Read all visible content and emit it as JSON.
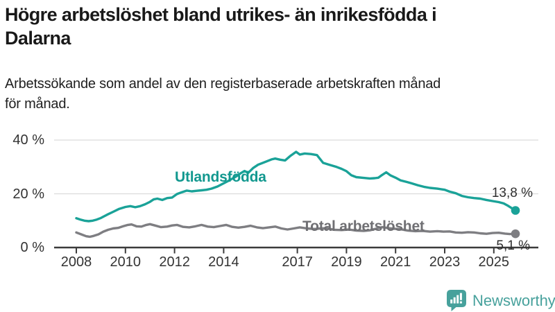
{
  "header": {
    "title": "Högre arbetslöshet bland utrikes- än inrikesfödda i\nDalarna",
    "subtitle": "Arbetssökande som andel av den registerbaserade arbetskraften månad\nför månad."
  },
  "footer": {
    "brand": "Newsworthy",
    "brand_color": "#47a19c",
    "logo_icon": "speech-bubble-bar-chart-exclamation"
  },
  "chart_data": {
    "type": "line",
    "title": "Högre arbetslöshet bland utrikes- än inrikesfödda i Dalarna",
    "subtitle": "Arbetssökande som andel av den registerbaserade arbetskraften månad för månad.",
    "unit": "%",
    "ylim": [
      0,
      40
    ],
    "xlim": [
      2007.1,
      2026.8
    ],
    "grid": "horizontal-only",
    "legend": "inline-labels",
    "yticks": [
      {
        "label": "0 %",
        "value": 0
      },
      {
        "label": "20 %",
        "value": 20
      },
      {
        "label": "40 %",
        "value": 40
      }
    ],
    "xticks": [
      {
        "label": "2008",
        "year": 2008
      },
      {
        "label": "2010",
        "year": 2010
      },
      {
        "label": "2012",
        "year": 2012
      },
      {
        "label": "2014",
        "year": 2014
      },
      {
        "label": "2017",
        "year": 2017
      },
      {
        "label": "2019",
        "year": 2019
      },
      {
        "label": "2021",
        "year": 2021
      },
      {
        "label": "2023",
        "year": 2023
      },
      {
        "label": "2025",
        "year": 2025
      }
    ],
    "series": [
      {
        "name": "Utlandsfödda",
        "color": "#1aa298",
        "name_color": "#12988f",
        "end_label": "13,8 %",
        "end_value": 13.8,
        "points": [
          [
            2008.0,
            10.9
          ],
          [
            2008.17,
            10.4
          ],
          [
            2008.33,
            10.0
          ],
          [
            2008.5,
            9.8
          ],
          [
            2008.67,
            10.0
          ],
          [
            2008.83,
            10.4
          ],
          [
            2009.0,
            11.0
          ],
          [
            2009.25,
            12.2
          ],
          [
            2009.5,
            13.3
          ],
          [
            2009.75,
            14.4
          ],
          [
            2010.0,
            15.1
          ],
          [
            2010.2,
            15.4
          ],
          [
            2010.4,
            15.0
          ],
          [
            2010.6,
            15.4
          ],
          [
            2010.8,
            16.1
          ],
          [
            2011.0,
            17.0
          ],
          [
            2011.15,
            17.9
          ],
          [
            2011.3,
            18.2
          ],
          [
            2011.5,
            17.7
          ],
          [
            2011.7,
            18.4
          ],
          [
            2011.9,
            18.6
          ],
          [
            2012.1,
            19.9
          ],
          [
            2012.3,
            20.6
          ],
          [
            2012.5,
            21.2
          ],
          [
            2012.7,
            20.9
          ],
          [
            2012.9,
            21.1
          ],
          [
            2013.1,
            21.3
          ],
          [
            2013.3,
            21.5
          ],
          [
            2013.5,
            21.9
          ],
          [
            2013.75,
            22.7
          ],
          [
            2014.0,
            23.9
          ],
          [
            2014.25,
            25.1
          ],
          [
            2014.5,
            26.4
          ],
          [
            2014.7,
            27.7
          ],
          [
            2014.85,
            28.5
          ],
          [
            2015.0,
            27.8
          ],
          [
            2015.2,
            29.6
          ],
          [
            2015.4,
            30.8
          ],
          [
            2015.7,
            31.9
          ],
          [
            2015.95,
            32.8
          ],
          [
            2016.1,
            33.1
          ],
          [
            2016.3,
            32.7
          ],
          [
            2016.5,
            32.4
          ],
          [
            2016.7,
            34.0
          ],
          [
            2016.95,
            35.6
          ],
          [
            2017.1,
            34.6
          ],
          [
            2017.3,
            35.0
          ],
          [
            2017.55,
            34.8
          ],
          [
            2017.8,
            34.4
          ],
          [
            2018.05,
            31.5
          ],
          [
            2018.3,
            30.8
          ],
          [
            2018.6,
            30.0
          ],
          [
            2018.8,
            29.3
          ],
          [
            2019.0,
            28.4
          ],
          [
            2019.2,
            26.9
          ],
          [
            2019.4,
            26.2
          ],
          [
            2019.7,
            25.9
          ],
          [
            2019.95,
            25.7
          ],
          [
            2020.15,
            25.8
          ],
          [
            2020.3,
            26.0
          ],
          [
            2020.45,
            27.0
          ],
          [
            2020.62,
            28.0
          ],
          [
            2020.8,
            26.8
          ],
          [
            2021.0,
            26.0
          ],
          [
            2021.2,
            25.0
          ],
          [
            2021.45,
            24.4
          ],
          [
            2021.65,
            23.9
          ],
          [
            2021.9,
            23.2
          ],
          [
            2022.15,
            22.6
          ],
          [
            2022.4,
            22.2
          ],
          [
            2022.7,
            21.9
          ],
          [
            2023.0,
            21.5
          ],
          [
            2023.2,
            20.8
          ],
          [
            2023.45,
            20.2
          ],
          [
            2023.7,
            19.2
          ],
          [
            2023.95,
            18.7
          ],
          [
            2024.2,
            18.4
          ],
          [
            2024.45,
            18.2
          ],
          [
            2024.7,
            17.7
          ],
          [
            2024.95,
            17.3
          ],
          [
            2025.2,
            16.9
          ],
          [
            2025.4,
            16.4
          ],
          [
            2025.55,
            15.7
          ],
          [
            2025.7,
            14.8
          ],
          [
            2025.88,
            13.8
          ]
        ]
      },
      {
        "name": "Total arbetslöshet",
        "color": "#7e7e82",
        "name_color": "#6f6f73",
        "end_label": "5,1 %",
        "end_value": 5.1,
        "points": [
          [
            2008.0,
            5.6
          ],
          [
            2008.2,
            4.9
          ],
          [
            2008.4,
            4.2
          ],
          [
            2008.55,
            4.0
          ],
          [
            2008.7,
            4.3
          ],
          [
            2008.9,
            4.9
          ],
          [
            2009.1,
            5.9
          ],
          [
            2009.3,
            6.6
          ],
          [
            2009.5,
            7.1
          ],
          [
            2009.7,
            7.3
          ],
          [
            2009.9,
            7.9
          ],
          [
            2010.1,
            8.4
          ],
          [
            2010.25,
            8.6
          ],
          [
            2010.45,
            7.9
          ],
          [
            2010.65,
            7.8
          ],
          [
            2010.85,
            8.4
          ],
          [
            2011.0,
            8.7
          ],
          [
            2011.2,
            8.2
          ],
          [
            2011.45,
            7.6
          ],
          [
            2011.7,
            7.8
          ],
          [
            2011.9,
            8.2
          ],
          [
            2012.1,
            8.4
          ],
          [
            2012.35,
            7.7
          ],
          [
            2012.6,
            7.5
          ],
          [
            2012.85,
            7.9
          ],
          [
            2013.1,
            8.4
          ],
          [
            2013.35,
            7.8
          ],
          [
            2013.6,
            7.6
          ],
          [
            2013.85,
            8.0
          ],
          [
            2014.1,
            8.4
          ],
          [
            2014.35,
            7.7
          ],
          [
            2014.6,
            7.4
          ],
          [
            2014.85,
            7.7
          ],
          [
            2015.1,
            8.1
          ],
          [
            2015.35,
            7.5
          ],
          [
            2015.6,
            7.2
          ],
          [
            2015.85,
            7.5
          ],
          [
            2016.1,
            7.8
          ],
          [
            2016.35,
            7.1
          ],
          [
            2016.6,
            6.7
          ],
          [
            2016.85,
            7.1
          ],
          [
            2017.1,
            7.5
          ],
          [
            2017.4,
            7.1
          ],
          [
            2017.7,
            6.9
          ],
          [
            2017.95,
            7.1
          ],
          [
            2018.2,
            7.2
          ],
          [
            2018.5,
            6.6
          ],
          [
            2018.8,
            6.5
          ],
          [
            2019.1,
            6.7
          ],
          [
            2019.4,
            6.3
          ],
          [
            2019.7,
            6.2
          ],
          [
            2019.95,
            6.4
          ],
          [
            2020.2,
            7.0
          ],
          [
            2020.45,
            7.6
          ],
          [
            2020.7,
            7.2
          ],
          [
            2020.95,
            7.0
          ],
          [
            2021.2,
            6.8
          ],
          [
            2021.5,
            6.3
          ],
          [
            2021.8,
            6.1
          ],
          [
            2022.1,
            6.2
          ],
          [
            2022.4,
            5.9
          ],
          [
            2022.7,
            6.1
          ],
          [
            2022.95,
            5.9
          ],
          [
            2023.2,
            6.0
          ],
          [
            2023.45,
            5.6
          ],
          [
            2023.7,
            5.5
          ],
          [
            2023.95,
            5.7
          ],
          [
            2024.2,
            5.6
          ],
          [
            2024.45,
            5.3
          ],
          [
            2024.7,
            5.1
          ],
          [
            2024.95,
            5.4
          ],
          [
            2025.2,
            5.5
          ],
          [
            2025.45,
            5.2
          ],
          [
            2025.65,
            5.0
          ],
          [
            2025.88,
            5.1
          ]
        ]
      }
    ]
  }
}
